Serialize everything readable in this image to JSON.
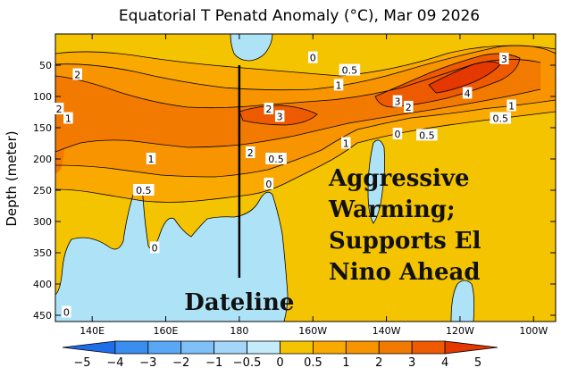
{
  "chart_data": {
    "type": "heatmap",
    "title": "Equatorial T Penatd Anomaly (°C), Mar 09 2026",
    "xlabel": "",
    "ylabel": "Depth (meter)",
    "x_ticks": [
      {
        "lon": 140,
        "label": "140E"
      },
      {
        "lon": 160,
        "label": "160E"
      },
      {
        "lon": 180,
        "label": "180"
      },
      {
        "lon": 200,
        "label": "160W"
      },
      {
        "lon": 220,
        "label": "140W"
      },
      {
        "lon": 240,
        "label": "120W"
      },
      {
        "lon": 260,
        "label": "100W"
      }
    ],
    "xlim": [
      130,
      266
    ],
    "y_ticks": [
      50,
      100,
      150,
      200,
      250,
      300,
      350,
      400,
      450
    ],
    "ylim": [
      0,
      460
    ],
    "colorbar": {
      "levels": [
        "-5",
        "-4",
        "-3",
        "-2",
        "-1",
        "-0.5",
        "0",
        "0.5",
        "1",
        "2",
        "3",
        "4",
        "5"
      ],
      "colors": [
        "#1f6ee8",
        "#3a8ef0",
        "#5aa8f5",
        "#7ec0f7",
        "#a3d6f9",
        "#c3ebfa",
        "#f5c400",
        "#f9a900",
        "#f79400",
        "#f27a00",
        "#ee5a00",
        "#e53800"
      ]
    },
    "contour_labels": [
      {
        "lon": 131,
        "depth": 120,
        "text": "2"
      },
      {
        "lon": 133.5,
        "depth": 135,
        "text": "1"
      },
      {
        "lon": 133,
        "depth": 445,
        "text": "0"
      },
      {
        "lon": 136,
        "depth": 65,
        "text": "2"
      },
      {
        "lon": 156,
        "depth": 200,
        "text": "1"
      },
      {
        "lon": 154,
        "depth": 250,
        "text": "0.5"
      },
      {
        "lon": 157,
        "depth": 342,
        "text": "0"
      },
      {
        "lon": 188,
        "depth": 120,
        "text": "2"
      },
      {
        "lon": 191,
        "depth": 132,
        "text": "3"
      },
      {
        "lon": 183,
        "depth": 190,
        "text": "2"
      },
      {
        "lon": 190,
        "depth": 200,
        "text": "0.5"
      },
      {
        "lon": 188,
        "depth": 240,
        "text": "0"
      },
      {
        "lon": 200,
        "depth": 38,
        "text": "0"
      },
      {
        "lon": 210,
        "depth": 58,
        "text": "0.5"
      },
      {
        "lon": 207,
        "depth": 82,
        "text": "1"
      },
      {
        "lon": 209,
        "depth": 175,
        "text": "1"
      },
      {
        "lon": 223,
        "depth": 108,
        "text": "3"
      },
      {
        "lon": 226,
        "depth": 117,
        "text": "2"
      },
      {
        "lon": 223,
        "depth": 160,
        "text": "0"
      },
      {
        "lon": 231,
        "depth": 162,
        "text": "0.5"
      },
      {
        "lon": 242,
        "depth": 95,
        "text": "4"
      },
      {
        "lon": 252,
        "depth": 40,
        "text": "3"
      },
      {
        "lon": 254,
        "depth": 115,
        "text": "1"
      },
      {
        "lon": 251,
        "depth": 135,
        "text": "0.5"
      }
    ],
    "annotations": [
      {
        "text": "Dateline",
        "lon": 180,
        "depth_top": 50,
        "depth_bottom": 390
      },
      {
        "lines": [
          "Aggressive",
          "Warming;",
          "Supports El",
          "Nino Ahead"
        ]
      }
    ]
  }
}
